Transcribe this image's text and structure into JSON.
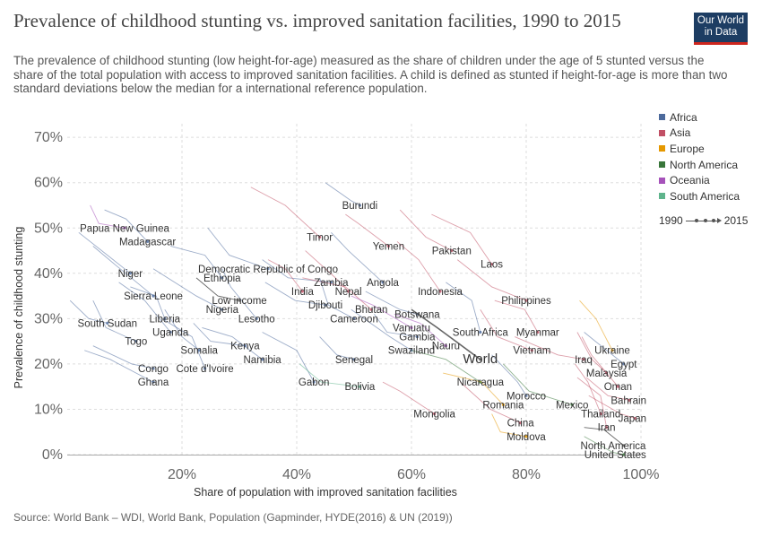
{
  "header": {
    "title": "Prevalence of childhood stunting vs. improved sanitation facilities, 1990 to 2015",
    "subtitle": "The prevalence of childhood stunting (low height-for-age) measured as the share of children under the age of 5 stunted versus the share of the total population with access to improved sanitation facilities. A child is defined as stunted if height-for-age is more than two standard deviations below the median for a international reference population.",
    "logo_line1": "Our World",
    "logo_line2": "in Data"
  },
  "footer": {
    "source": "Source: World Bank – WDI, World Bank, Population (Gapminder, HYDE(2016) & UN (2019))"
  },
  "legend": {
    "items": [
      {
        "label": "Africa",
        "color": "#4c6a9c"
      },
      {
        "label": "Asia",
        "color": "#c15065"
      },
      {
        "label": "Europe",
        "color": "#e59800"
      },
      {
        "label": "North America",
        "color": "#38763a"
      },
      {
        "label": "Oceania",
        "color": "#a652ba"
      },
      {
        "label": "South America",
        "color": "#5fb48c"
      }
    ],
    "start_year": "1990",
    "end_year": "2015"
  },
  "chart_data": {
    "type": "scatter",
    "title": "Prevalence of childhood stunting vs. improved sanitation facilities, 1990 to 2015",
    "xlabel": "Share of population with improved sanitation facilities",
    "ylabel": "Prevalence of childhood stunting",
    "xlim": [
      0,
      100
    ],
    "ylim": [
      0,
      73
    ],
    "x_ticks": [
      {
        "value": 20,
        "label": "20%"
      },
      {
        "value": 40,
        "label": "40%"
      },
      {
        "value": 60,
        "label": "60%"
      },
      {
        "value": 80,
        "label": "80%"
      },
      {
        "value": 100,
        "label": "100%"
      }
    ],
    "y_ticks": [
      {
        "value": 0,
        "label": "0%"
      },
      {
        "value": 10,
        "label": "10%"
      },
      {
        "value": 20,
        "label": "20%"
      },
      {
        "value": 30,
        "label": "30%"
      },
      {
        "value": 40,
        "label": "40%"
      },
      {
        "value": 50,
        "label": "50%"
      },
      {
        "value": 60,
        "label": "60%"
      },
      {
        "value": 70,
        "label": "70%"
      }
    ],
    "grid": true,
    "legend_position": "right",
    "countries": [
      {
        "name": "Papua New Guinea",
        "region": "Oceania",
        "x": 10,
        "y": 50
      },
      {
        "name": "Madagascar",
        "region": "Africa",
        "x": 14,
        "y": 47
      },
      {
        "name": "Niger",
        "region": "Africa",
        "x": 11,
        "y": 40
      },
      {
        "name": "Sierra Leone",
        "region": "Africa",
        "x": 15,
        "y": 35
      },
      {
        "name": "South Sudan",
        "region": "Africa",
        "x": 7,
        "y": 29
      },
      {
        "name": "Liberia",
        "region": "Africa",
        "x": 17,
        "y": 30
      },
      {
        "name": "Togo",
        "region": "Africa",
        "x": 12,
        "y": 25
      },
      {
        "name": "Uganda",
        "region": "Africa",
        "x": 18,
        "y": 27
      },
      {
        "name": "Congo",
        "region": "Africa",
        "x": 15,
        "y": 19
      },
      {
        "name": "Ghana",
        "region": "Africa",
        "x": 15,
        "y": 16
      },
      {
        "name": "Somalia",
        "region": "Africa",
        "x": 23,
        "y": 23
      },
      {
        "name": "Cote d'Ivoire",
        "region": "Africa",
        "x": 24,
        "y": 19
      },
      {
        "name": "Kenya",
        "region": "Africa",
        "x": 31,
        "y": 24
      },
      {
        "name": "Namibia",
        "region": "Africa",
        "x": 34,
        "y": 21
      },
      {
        "name": "Nigeria",
        "region": "Africa",
        "x": 27,
        "y": 32
      },
      {
        "name": "Lesotho",
        "region": "Africa",
        "x": 33,
        "y": 30
      },
      {
        "name": "Low income",
        "region": "",
        "x": 30,
        "y": 34
      },
      {
        "name": "Ethiopia",
        "region": "Africa",
        "x": 27,
        "y": 39
      },
      {
        "name": "Democratic Republic of Congo",
        "region": "Africa",
        "x": 35,
        "y": 41
      },
      {
        "name": "Timor",
        "region": "Asia",
        "x": 44,
        "y": 48
      },
      {
        "name": "Burundi",
        "region": "Africa",
        "x": 51,
        "y": 55
      },
      {
        "name": "Yemen",
        "region": "Asia",
        "x": 56,
        "y": 46
      },
      {
        "name": "Pakistan",
        "region": "Asia",
        "x": 67,
        "y": 45
      },
      {
        "name": "Laos",
        "region": "Asia",
        "x": 74,
        "y": 42
      },
      {
        "name": "Zambia",
        "region": "Africa",
        "x": 46,
        "y": 38
      },
      {
        "name": "India",
        "region": "Asia",
        "x": 41,
        "y": 36
      },
      {
        "name": "Nepal",
        "region": "Asia",
        "x": 49,
        "y": 36
      },
      {
        "name": "Angola",
        "region": "Africa",
        "x": 55,
        "y": 38
      },
      {
        "name": "Djibouti",
        "region": "Africa",
        "x": 45,
        "y": 33
      },
      {
        "name": "Bhutan",
        "region": "Asia",
        "x": 53,
        "y": 32
      },
      {
        "name": "Cameroon",
        "region": "Africa",
        "x": 50,
        "y": 30
      },
      {
        "name": "Indonesia",
        "region": "Asia",
        "x": 65,
        "y": 36
      },
      {
        "name": "Botswana",
        "region": "Africa",
        "x": 61,
        "y": 31
      },
      {
        "name": "Vanuatu",
        "region": "Oceania",
        "x": 60,
        "y": 28
      },
      {
        "name": "Philippines",
        "region": "Asia",
        "x": 80,
        "y": 34
      },
      {
        "name": "South Africa",
        "region": "Africa",
        "x": 72,
        "y": 27
      },
      {
        "name": "Gambia",
        "region": "Africa",
        "x": 61,
        "y": 26
      },
      {
        "name": "Nauru",
        "region": "Oceania",
        "x": 66,
        "y": 24
      },
      {
        "name": "Swaziland",
        "region": "Africa",
        "x": 60,
        "y": 23
      },
      {
        "name": "World",
        "region": "",
        "x": 72,
        "y": 21
      },
      {
        "name": "Senegal",
        "region": "Africa",
        "x": 50,
        "y": 21
      },
      {
        "name": "Myanmar",
        "region": "Asia",
        "x": 82,
        "y": 27
      },
      {
        "name": "Vietnam",
        "region": "Asia",
        "x": 81,
        "y": 23
      },
      {
        "name": "Ukraine",
        "region": "Europe",
        "x": 95,
        "y": 23
      },
      {
        "name": "Iraq",
        "region": "Asia",
        "x": 90,
        "y": 21
      },
      {
        "name": "Egypt",
        "region": "Africa",
        "x": 97,
        "y": 20
      },
      {
        "name": "Malaysia",
        "region": "Asia",
        "x": 94,
        "y": 18
      },
      {
        "name": "Gabon",
        "region": "Africa",
        "x": 43,
        "y": 16
      },
      {
        "name": "Bolivia",
        "region": "South America",
        "x": 51,
        "y": 15
      },
      {
        "name": "Nicaragua",
        "region": "North America",
        "x": 72,
        "y": 16
      },
      {
        "name": "Morocco",
        "region": "Africa",
        "x": 80,
        "y": 13
      },
      {
        "name": "Oman",
        "region": "Asia",
        "x": 96,
        "y": 15
      },
      {
        "name": "Bahrain",
        "region": "Asia",
        "x": 98,
        "y": 12
      },
      {
        "name": "Romania",
        "region": "Europe",
        "x": 76,
        "y": 11
      },
      {
        "name": "Mexico",
        "region": "North America",
        "x": 88,
        "y": 11
      },
      {
        "name": "Thailand",
        "region": "Asia",
        "x": 93,
        "y": 9
      },
      {
        "name": "Japan",
        "region": "Asia",
        "x": 99,
        "y": 8
      },
      {
        "name": "Mongolia",
        "region": "Asia",
        "x": 64,
        "y": 9
      },
      {
        "name": "China",
        "region": "Asia",
        "x": 79,
        "y": 7
      },
      {
        "name": "Iran",
        "region": "Asia",
        "x": 94,
        "y": 6
      },
      {
        "name": "Moldova",
        "region": "Europe",
        "x": 80,
        "y": 4
      },
      {
        "name": "North America",
        "region": "",
        "x": 97,
        "y": 2
      },
      {
        "name": "United States",
        "region": "North America",
        "x": 97,
        "y": 0
      }
    ]
  }
}
